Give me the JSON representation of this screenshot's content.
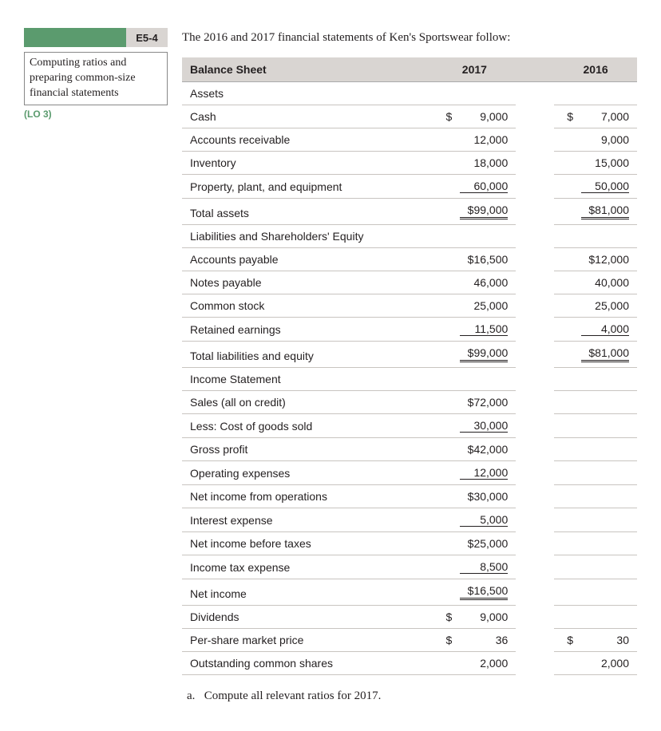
{
  "badge": {
    "code": "E5-4",
    "green_color": "#5b9b6e",
    "gray_color": "#d9d5d2"
  },
  "exercise_title": "Computing ratios and preparing common-size financial statements",
  "lo": "(LO 3)",
  "intro": "The 2016 and 2017 financial statements of Ken's Sportswear follow:",
  "table": {
    "headers": {
      "label": "Balance Sheet",
      "col1": "2017",
      "col2": "2016"
    },
    "rows": [
      {
        "label": "Assets",
        "c1cur": "",
        "c1": "",
        "c2cur": "",
        "c2": "",
        "section": true
      },
      {
        "label": "Cash",
        "c1cur": "$",
        "c1": "9,000",
        "c2cur": "$",
        "c2": "7,000"
      },
      {
        "label": "Accounts receivable",
        "c1cur": "",
        "c1": "12,000",
        "c2cur": "",
        "c2": "9,000"
      },
      {
        "label": "Inventory",
        "c1cur": "",
        "c1": "18,000",
        "c2cur": "",
        "c2": "15,000"
      },
      {
        "label": "Property, plant, and equipment",
        "c1cur": "",
        "c1": "60,000",
        "c2cur": "",
        "c2": "50,000",
        "u": "single"
      },
      {
        "label": "Total assets",
        "c1cur": "",
        "c1": "$99,000",
        "c2cur": "",
        "c2": "$81,000",
        "u": "double"
      },
      {
        "label": "Liabilities and Shareholders' Equity",
        "c1cur": "",
        "c1": "",
        "c2cur": "",
        "c2": "",
        "section": true
      },
      {
        "label": "Accounts payable",
        "c1cur": "",
        "c1": "$16,500",
        "c2cur": "",
        "c2": "$12,000"
      },
      {
        "label": "Notes payable",
        "c1cur": "",
        "c1": "46,000",
        "c2cur": "",
        "c2": "40,000"
      },
      {
        "label": "Common stock",
        "c1cur": "",
        "c1": "25,000",
        "c2cur": "",
        "c2": "25,000"
      },
      {
        "label": "Retained earnings",
        "c1cur": "",
        "c1": "11,500",
        "c2cur": "",
        "c2": "4,000",
        "u": "single"
      },
      {
        "label": "Total liabilities and equity",
        "c1cur": "",
        "c1": "$99,000",
        "c2cur": "",
        "c2": "$81,000",
        "u": "double"
      },
      {
        "label": "Income Statement",
        "c1cur": "",
        "c1": "",
        "c2cur": "",
        "c2": "",
        "section": true
      },
      {
        "label": "Sales (all on credit)",
        "c1cur": "",
        "c1": "$72,000",
        "c2cur": "",
        "c2": ""
      },
      {
        "label": "Less: Cost of goods sold",
        "c1cur": "",
        "c1": "30,000",
        "c2cur": "",
        "c2": "",
        "u": "single"
      },
      {
        "label": "Gross profit",
        "c1cur": "",
        "c1": "$42,000",
        "c2cur": "",
        "c2": ""
      },
      {
        "label": "Operating expenses",
        "c1cur": "",
        "c1": "12,000",
        "c2cur": "",
        "c2": "",
        "u": "single"
      },
      {
        "label": "Net income from operations",
        "c1cur": "",
        "c1": "$30,000",
        "c2cur": "",
        "c2": ""
      },
      {
        "label": "Interest expense",
        "c1cur": "",
        "c1": "5,000",
        "c2cur": "",
        "c2": "",
        "u": "single"
      },
      {
        "label": "Net income before taxes",
        "c1cur": "",
        "c1": "$25,000",
        "c2cur": "",
        "c2": ""
      },
      {
        "label": "Income tax expense",
        "c1cur": "",
        "c1": "8,500",
        "c2cur": "",
        "c2": "",
        "u": "single"
      },
      {
        "label": "Net income",
        "c1cur": "",
        "c1": "$16,500",
        "c2cur": "",
        "c2": "",
        "u": "double"
      },
      {
        "label": "Dividends",
        "c1cur": "$",
        "c1": "9,000",
        "c2cur": "",
        "c2": ""
      },
      {
        "label": "Per-share market price",
        "c1cur": "$",
        "c1": "36",
        "c2cur": "$",
        "c2": "30"
      },
      {
        "label": "Outstanding common shares",
        "c1cur": "",
        "c1": "2,000",
        "c2cur": "",
        "c2": "2,000"
      }
    ]
  },
  "question": {
    "letter": "a.",
    "text": "Compute all relevant ratios for 2017."
  },
  "style": {
    "font_body": "Georgia, serif",
    "font_table": "Arial, Helvetica, sans-serif",
    "text_color": "#231f20",
    "header_bg": "#d9d5d2",
    "row_border": "#c8c4c0"
  }
}
